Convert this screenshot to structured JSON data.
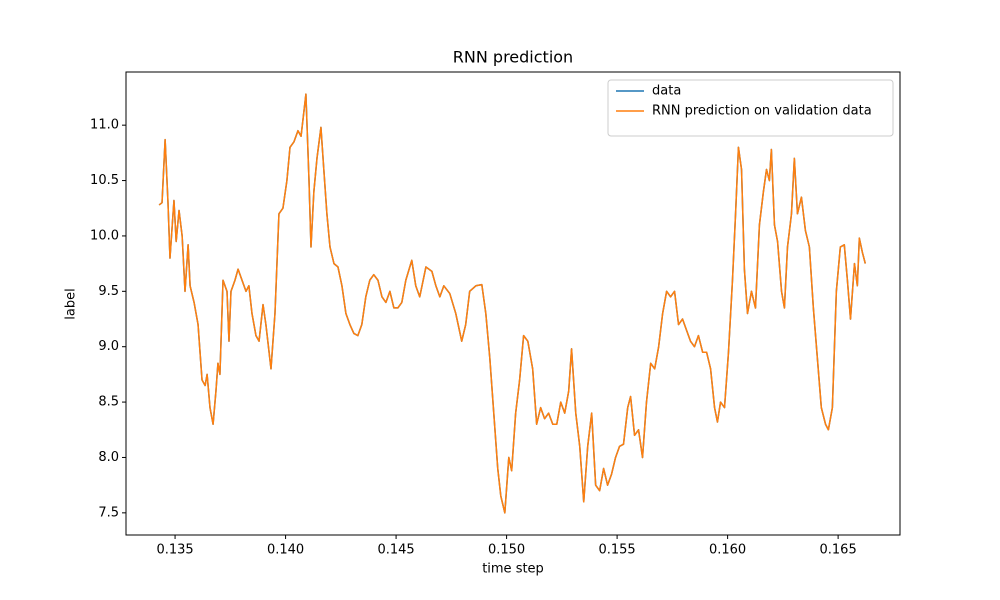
{
  "chart_data": {
    "type": "line",
    "title": "RNN prediction",
    "xlabel": "time step",
    "ylabel": "label",
    "legend": "upper right",
    "xlim": [
      0.13278,
      0.1678
    ],
    "ylim": [
      7.3,
      11.48
    ],
    "xticks": [
      0.135,
      {
        "value": 0.14,
        "label": "0.140"
      },
      0.145,
      {
        "value": 0.15,
        "label": "0.150"
      },
      0.155,
      {
        "value": 0.16,
        "label": "0.160"
      },
      0.165
    ],
    "yticks": [
      7.5,
      {
        "value": 8,
        "label": "8.0"
      },
      8.5,
      {
        "value": 9,
        "label": "9.0"
      },
      9.5,
      {
        "value": 10,
        "label": "10.0"
      },
      10.5,
      {
        "value": 11,
        "label": "11.0"
      }
    ],
    "x": [
      0.13428,
      0.13441,
      0.13455,
      0.13468,
      0.13477,
      0.13495,
      0.13505,
      0.13518,
      0.13532,
      0.13545,
      0.13559,
      0.13568,
      0.13586,
      0.13604,
      0.13622,
      0.13636,
      0.13645,
      0.13658,
      0.13672,
      0.13685,
      0.13694,
      0.13703,
      0.13717,
      0.13735,
      0.13744,
      0.13753,
      0.13771,
      0.13785,
      0.13803,
      0.13821,
      0.13834,
      0.13848,
      0.13866,
      0.1388,
      0.13898,
      0.13911,
      0.13934,
      0.13952,
      0.1397,
      0.13988,
      0.14006,
      0.1402,
      0.14038,
      0.14056,
      0.1407,
      0.14092,
      0.14106,
      0.14115,
      0.14128,
      0.14142,
      0.1416,
      0.14173,
      0.14187,
      0.14201,
      0.14219,
      0.14237,
      0.14255,
      0.14273,
      0.14291,
      0.14309,
      0.14327,
      0.14345,
      0.14363,
      0.14381,
      0.14399,
      0.14418,
      0.14436,
      0.14454,
      0.14472,
      0.1449,
      0.14508,
      0.14526,
      0.14544,
      0.14571,
      0.14589,
      0.14607,
      0.14635,
      0.14662,
      0.1468,
      0.14698,
      0.14716,
      0.14743,
      0.1477,
      0.14797,
      0.14815,
      0.14833,
      0.14861,
      0.14888,
      0.14906,
      0.14924,
      0.14942,
      0.1496,
      0.14974,
      0.14992,
      0.1501,
      0.15023,
      0.15041,
      0.15059,
      0.15077,
      0.15096,
      0.15118,
      0.15136,
      0.15154,
      0.15172,
      0.1519,
      0.15209,
      0.15227,
      0.15245,
      0.15263,
      0.15281,
      0.15294,
      0.15313,
      0.15331,
      0.15349,
      0.15367,
      0.15385,
      0.15403,
      0.15421,
      0.15439,
      0.15457,
      0.15475,
      0.15493,
      0.15511,
      0.15529,
      0.15548,
      0.15561,
      0.15579,
      0.15597,
      0.15615,
      0.15633,
      0.15652,
      0.1567,
      0.15688,
      0.15706,
      0.15724,
      0.15742,
      0.1576,
      0.15778,
      0.15796,
      0.15814,
      0.15832,
      0.1585,
      0.15868,
      0.15887,
      0.15905,
      0.15923,
      0.15941,
      0.15954,
      0.15968,
      0.15986,
      0.16004,
      0.16022,
      0.16036,
      0.16049,
      0.16063,
      0.16076,
      0.1609,
      0.16108,
      0.16126,
      0.16144,
      0.16162,
      0.16176,
      0.16189,
      0.16198,
      0.16212,
      0.16226,
      0.16244,
      0.16257,
      0.16271,
      0.16289,
      0.16302,
      0.16316,
      0.16334,
      0.16352,
      0.1637,
      0.16388,
      0.16406,
      0.16424,
      0.16443,
      0.16456,
      0.16474,
      0.16492,
      0.1651,
      0.16528,
      0.16542,
      0.16556,
      0.16574,
      0.16587,
      0.16596,
      0.1661,
      0.16623
    ],
    "series": [
      {
        "name": "data",
        "color": "#1f77b4",
        "values": [
          10.28,
          10.3,
          10.87,
          10.3,
          9.8,
          10.32,
          9.95,
          10.23,
          10.0,
          9.5,
          9.92,
          9.55,
          9.4,
          9.2,
          8.7,
          8.65,
          8.75,
          8.45,
          8.3,
          8.6,
          8.85,
          8.75,
          9.6,
          9.5,
          9.05,
          9.5,
          9.6,
          9.7,
          9.6,
          9.5,
          9.55,
          9.3,
          9.1,
          9.05,
          9.38,
          9.2,
          8.8,
          9.3,
          10.2,
          10.25,
          10.5,
          10.8,
          10.85,
          10.95,
          10.9,
          11.28,
          10.5,
          9.9,
          10.4,
          10.7,
          10.98,
          10.6,
          10.2,
          9.9,
          9.75,
          9.72,
          9.55,
          9.3,
          9.2,
          9.12,
          9.1,
          9.2,
          9.45,
          9.6,
          9.65,
          9.6,
          9.45,
          9.4,
          9.5,
          9.35,
          9.35,
          9.4,
          9.6,
          9.78,
          9.55,
          9.45,
          9.72,
          9.68,
          9.55,
          9.45,
          9.55,
          9.48,
          9.3,
          9.05,
          9.2,
          9.5,
          9.55,
          9.56,
          9.3,
          8.9,
          8.4,
          7.9,
          7.65,
          7.5,
          8.0,
          7.88,
          8.4,
          8.7,
          9.1,
          9.05,
          8.8,
          8.3,
          8.45,
          8.35,
          8.4,
          8.3,
          8.3,
          8.5,
          8.4,
          8.6,
          8.98,
          8.4,
          8.1,
          7.6,
          8.1,
          8.4,
          7.75,
          7.7,
          7.9,
          7.75,
          7.85,
          8.0,
          8.1,
          8.12,
          8.45,
          8.55,
          8.2,
          8.25,
          8.0,
          8.5,
          8.85,
          8.8,
          9.0,
          9.3,
          9.5,
          9.45,
          9.5,
          9.2,
          9.25,
          9.15,
          9.05,
          9.0,
          9.1,
          8.95,
          8.95,
          8.8,
          8.45,
          8.32,
          8.5,
          8.45,
          8.95,
          9.6,
          10.2,
          10.8,
          10.6,
          9.7,
          9.3,
          9.5,
          9.35,
          10.1,
          10.4,
          10.6,
          10.5,
          10.78,
          10.1,
          9.95,
          9.5,
          9.35,
          9.9,
          10.2,
          10.7,
          10.2,
          10.35,
          10.05,
          9.9,
          9.35,
          8.9,
          8.45,
          8.3,
          8.25,
          8.45,
          9.5,
          9.9,
          9.92,
          9.6,
          9.25,
          9.75,
          9.55,
          9.98,
          9.85,
          9.75
        ]
      },
      {
        "name": "RNN prediction on validation data",
        "color": "#ff7f0e",
        "values": [
          10.28,
          10.3,
          10.87,
          10.3,
          9.8,
          10.32,
          9.95,
          10.23,
          10.0,
          9.5,
          9.92,
          9.55,
          9.4,
          9.2,
          8.7,
          8.65,
          8.75,
          8.45,
          8.3,
          8.6,
          8.85,
          8.75,
          9.6,
          9.5,
          9.05,
          9.5,
          9.6,
          9.7,
          9.6,
          9.5,
          9.55,
          9.3,
          9.1,
          9.05,
          9.38,
          9.2,
          8.8,
          9.3,
          10.2,
          10.25,
          10.5,
          10.8,
          10.85,
          10.95,
          10.9,
          11.28,
          10.5,
          9.9,
          10.4,
          10.7,
          10.98,
          10.6,
          10.2,
          9.9,
          9.75,
          9.72,
          9.55,
          9.3,
          9.2,
          9.12,
          9.1,
          9.2,
          9.45,
          9.6,
          9.65,
          9.6,
          9.45,
          9.4,
          9.5,
          9.35,
          9.35,
          9.4,
          9.6,
          9.78,
          9.55,
          9.45,
          9.72,
          9.68,
          9.55,
          9.45,
          9.55,
          9.48,
          9.3,
          9.05,
          9.2,
          9.5,
          9.55,
          9.56,
          9.3,
          8.9,
          8.4,
          7.9,
          7.65,
          7.5,
          8.0,
          7.88,
          8.4,
          8.7,
          9.1,
          9.05,
          8.8,
          8.3,
          8.45,
          8.35,
          8.4,
          8.3,
          8.3,
          8.5,
          8.4,
          8.6,
          8.98,
          8.4,
          8.1,
          7.6,
          8.1,
          8.4,
          7.75,
          7.7,
          7.9,
          7.75,
          7.85,
          8.0,
          8.1,
          8.12,
          8.45,
          8.55,
          8.2,
          8.25,
          8.0,
          8.5,
          8.85,
          8.8,
          9.0,
          9.3,
          9.5,
          9.45,
          9.5,
          9.2,
          9.25,
          9.15,
          9.05,
          9.0,
          9.1,
          8.95,
          8.95,
          8.8,
          8.45,
          8.32,
          8.5,
          8.45,
          8.95,
          9.6,
          10.2,
          10.8,
          10.6,
          9.7,
          9.3,
          9.5,
          9.35,
          10.1,
          10.4,
          10.6,
          10.5,
          10.78,
          10.1,
          9.95,
          9.5,
          9.35,
          9.9,
          10.2,
          10.7,
          10.2,
          10.35,
          10.05,
          9.9,
          9.35,
          8.9,
          8.45,
          8.3,
          8.25,
          8.45,
          9.5,
          9.9,
          9.92,
          9.6,
          9.25,
          9.75,
          9.55,
          9.98,
          9.85,
          9.75
        ]
      }
    ]
  }
}
